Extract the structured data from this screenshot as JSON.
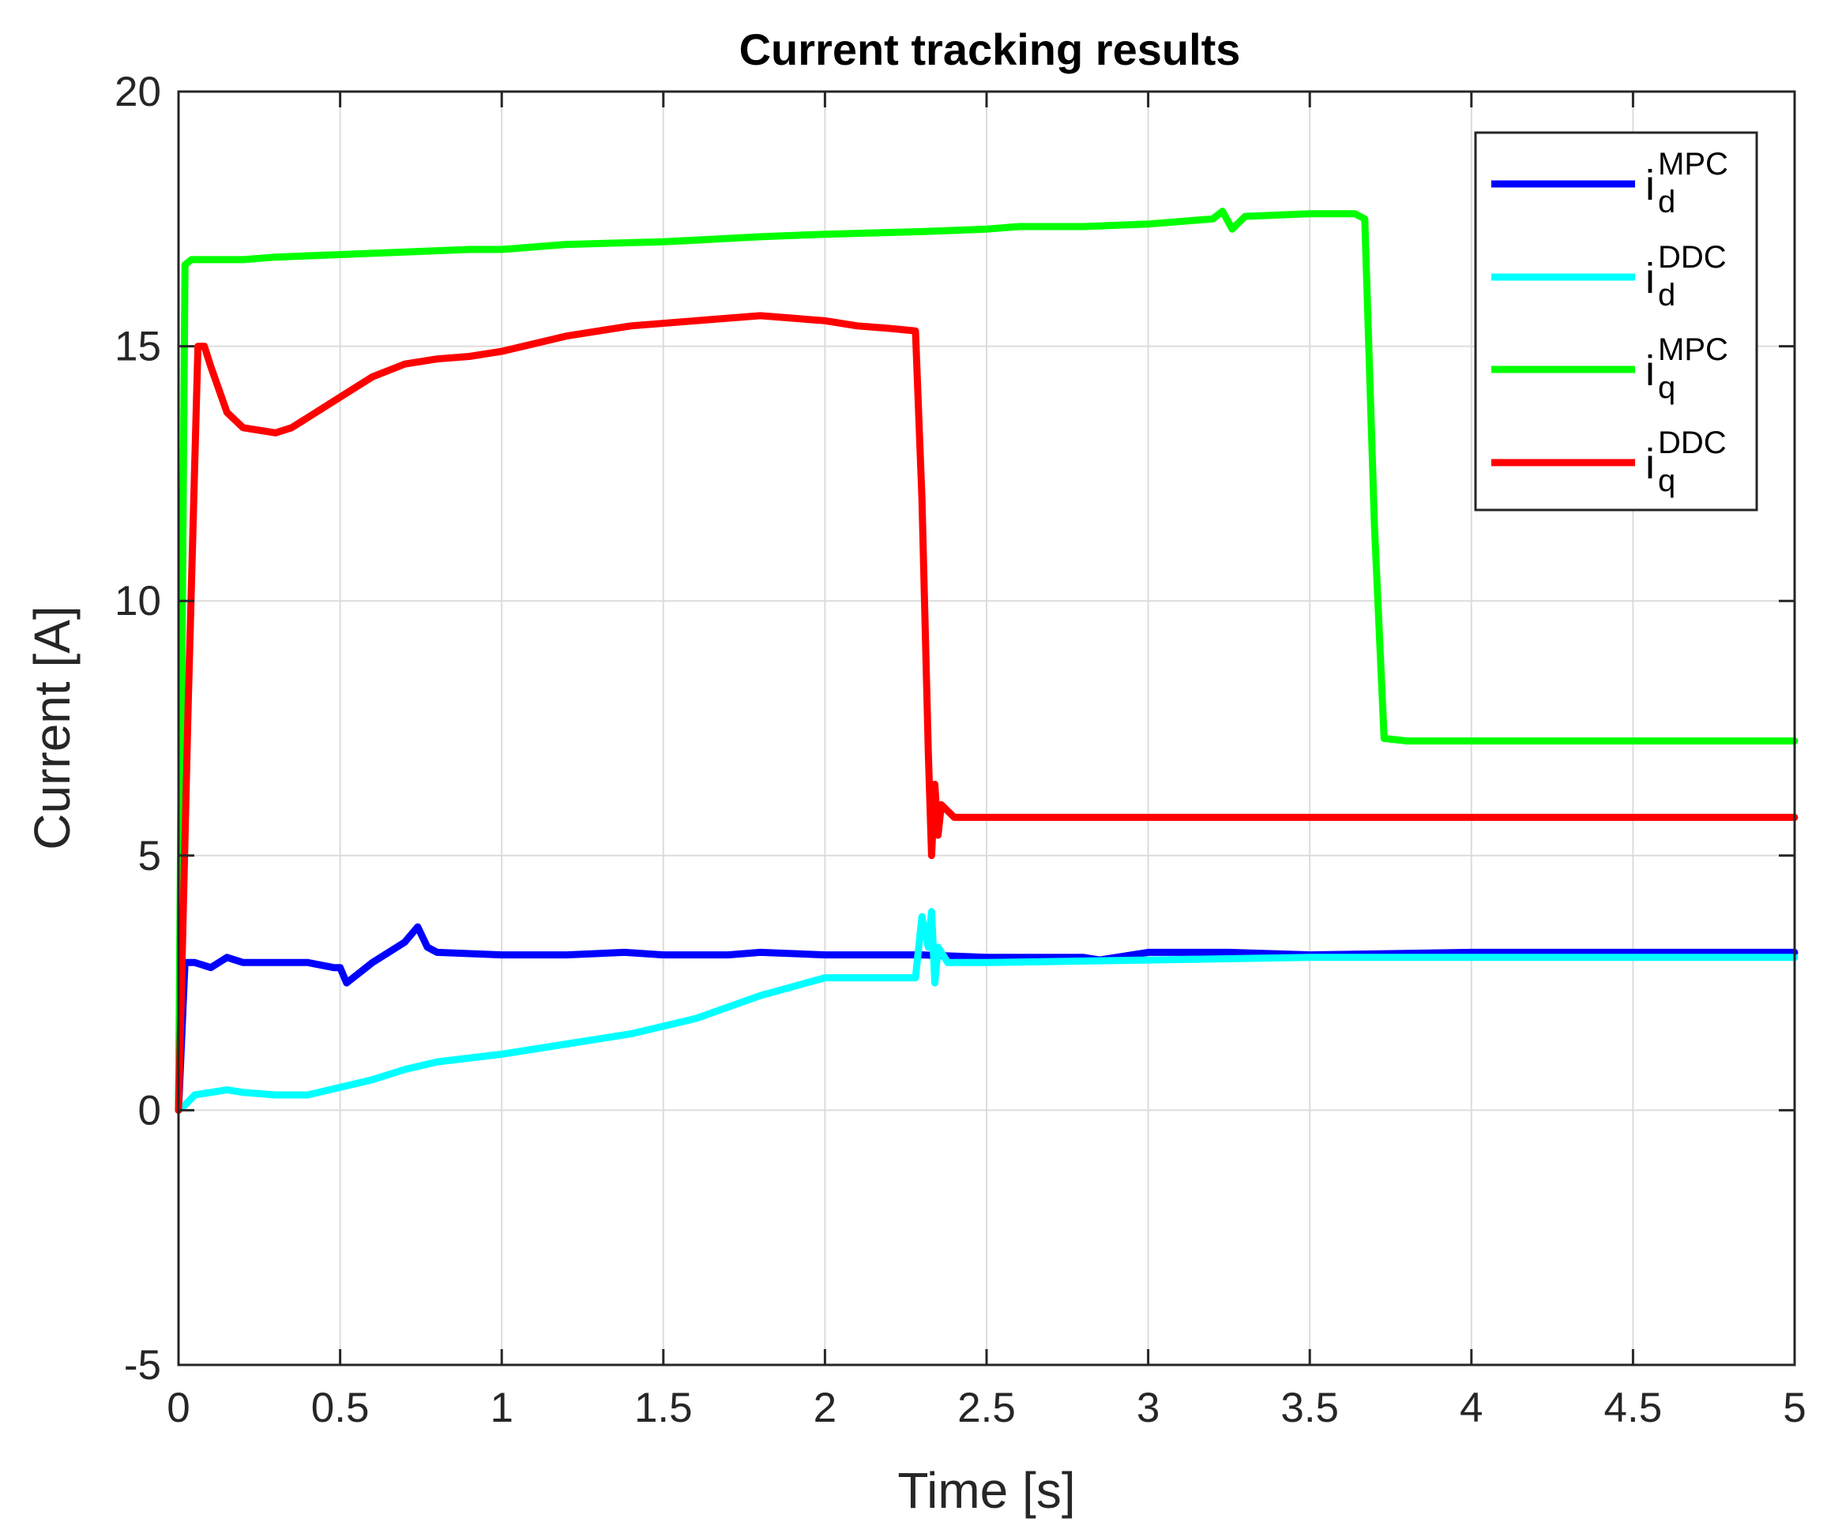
{
  "chart_data": {
    "type": "line",
    "title": "Current tracking results",
    "xlabel": "Time [s]",
    "ylabel": "Current [A]",
    "xlim": [
      0,
      5
    ],
    "ylim": [
      -5,
      20
    ],
    "grid": true,
    "legend_position": "top-right",
    "x_ticks": [
      0,
      0.5,
      1,
      1.5,
      2,
      2.5,
      3,
      3.5,
      4,
      4.5,
      5
    ],
    "x_tick_labels": [
      "0",
      "0.5",
      "1",
      "1.5",
      "2",
      "2.5",
      "3",
      "3.5",
      "4",
      "4.5",
      "5"
    ],
    "y_ticks": [
      -5,
      0,
      5,
      10,
      15,
      20
    ],
    "y_tick_labels": [
      "-5",
      "0",
      "5",
      "10",
      "15",
      "20"
    ],
    "series": [
      {
        "name": "i_d^MPC",
        "legend_base": "i",
        "legend_sub": "d",
        "legend_sup": "MPC",
        "color": "#0000ff",
        "x": [
          0,
          0.02,
          0.05,
          0.1,
          0.15,
          0.2,
          0.3,
          0.4,
          0.48,
          0.5,
          0.52,
          0.6,
          0.7,
          0.74,
          0.77,
          0.8,
          1.0,
          1.2,
          1.38,
          1.5,
          1.7,
          1.8,
          2.0,
          2.3,
          2.5,
          2.6,
          2.8,
          2.85,
          3.0,
          3.25,
          3.5,
          4.0,
          4.5,
          5.0
        ],
        "y": [
          0,
          2.9,
          2.9,
          2.8,
          3.0,
          2.9,
          2.9,
          2.9,
          2.8,
          2.8,
          2.5,
          2.9,
          3.3,
          3.6,
          3.2,
          3.1,
          3.05,
          3.05,
          3.1,
          3.05,
          3.05,
          3.1,
          3.05,
          3.05,
          3.0,
          3.0,
          3.0,
          2.95,
          3.1,
          3.1,
          3.05,
          3.1,
          3.1,
          3.1
        ]
      },
      {
        "name": "i_d^DDC",
        "legend_base": "i",
        "legend_sub": "d",
        "legend_sup": "DDC",
        "color": "#00ffff",
        "x": [
          0,
          0.02,
          0.05,
          0.1,
          0.15,
          0.2,
          0.3,
          0.4,
          0.5,
          0.6,
          0.7,
          0.8,
          1.0,
          1.2,
          1.4,
          1.6,
          1.8,
          2.0,
          2.1,
          2.2,
          2.28,
          2.3,
          2.32,
          2.33,
          2.34,
          2.35,
          2.38,
          2.5,
          3.0,
          3.5,
          4.0,
          4.5,
          5.0
        ],
        "y": [
          0,
          0.1,
          0.3,
          0.35,
          0.4,
          0.35,
          0.3,
          0.3,
          0.45,
          0.6,
          0.8,
          0.95,
          1.1,
          1.3,
          1.5,
          1.8,
          2.25,
          2.6,
          2.6,
          2.6,
          2.6,
          3.8,
          3.2,
          3.9,
          2.5,
          3.2,
          2.9,
          2.9,
          2.95,
          3.0,
          3.0,
          3.0,
          3.0
        ]
      },
      {
        "name": "i_q^MPC",
        "legend_base": "i",
        "legend_sub": "q",
        "legend_sup": "MPC",
        "color": "#00ff00",
        "x": [
          0,
          0.02,
          0.04,
          0.1,
          0.2,
          0.3,
          0.5,
          0.7,
          0.9,
          1.0,
          1.2,
          1.5,
          1.8,
          2.0,
          2.3,
          2.5,
          2.6,
          2.8,
          3.0,
          3.2,
          3.23,
          3.26,
          3.3,
          3.5,
          3.64,
          3.67,
          3.7,
          3.73,
          3.8,
          4.0,
          4.5,
          5.0
        ],
        "y": [
          0,
          16.6,
          16.7,
          16.7,
          16.7,
          16.75,
          16.8,
          16.85,
          16.9,
          16.9,
          17.0,
          17.05,
          17.15,
          17.2,
          17.25,
          17.3,
          17.35,
          17.35,
          17.4,
          17.5,
          17.65,
          17.3,
          17.55,
          17.6,
          17.6,
          17.5,
          11.5,
          7.3,
          7.25,
          7.25,
          7.25,
          7.25
        ]
      },
      {
        "name": "i_q^DDC",
        "legend_base": "i",
        "legend_sub": "q",
        "legend_sup": "DDC",
        "color": "#ff0000",
        "x": [
          0,
          0.03,
          0.06,
          0.08,
          0.1,
          0.15,
          0.2,
          0.3,
          0.35,
          0.4,
          0.5,
          0.6,
          0.7,
          0.8,
          0.9,
          1.0,
          1.2,
          1.4,
          1.6,
          1.8,
          2.0,
          2.1,
          2.2,
          2.28,
          2.3,
          2.32,
          2.33,
          2.34,
          2.35,
          2.36,
          2.4,
          2.5,
          3.0,
          3.5,
          4.0,
          4.5,
          5.0
        ],
        "y": [
          0,
          8.0,
          15.0,
          15.0,
          14.6,
          13.7,
          13.4,
          13.3,
          13.4,
          13.6,
          14.0,
          14.4,
          14.65,
          14.75,
          14.8,
          14.9,
          15.2,
          15.4,
          15.5,
          15.6,
          15.5,
          15.4,
          15.35,
          15.3,
          12.0,
          7.0,
          5.0,
          6.4,
          5.4,
          6.0,
          5.75,
          5.75,
          5.75,
          5.75,
          5.75,
          5.75,
          5.75
        ]
      }
    ]
  }
}
